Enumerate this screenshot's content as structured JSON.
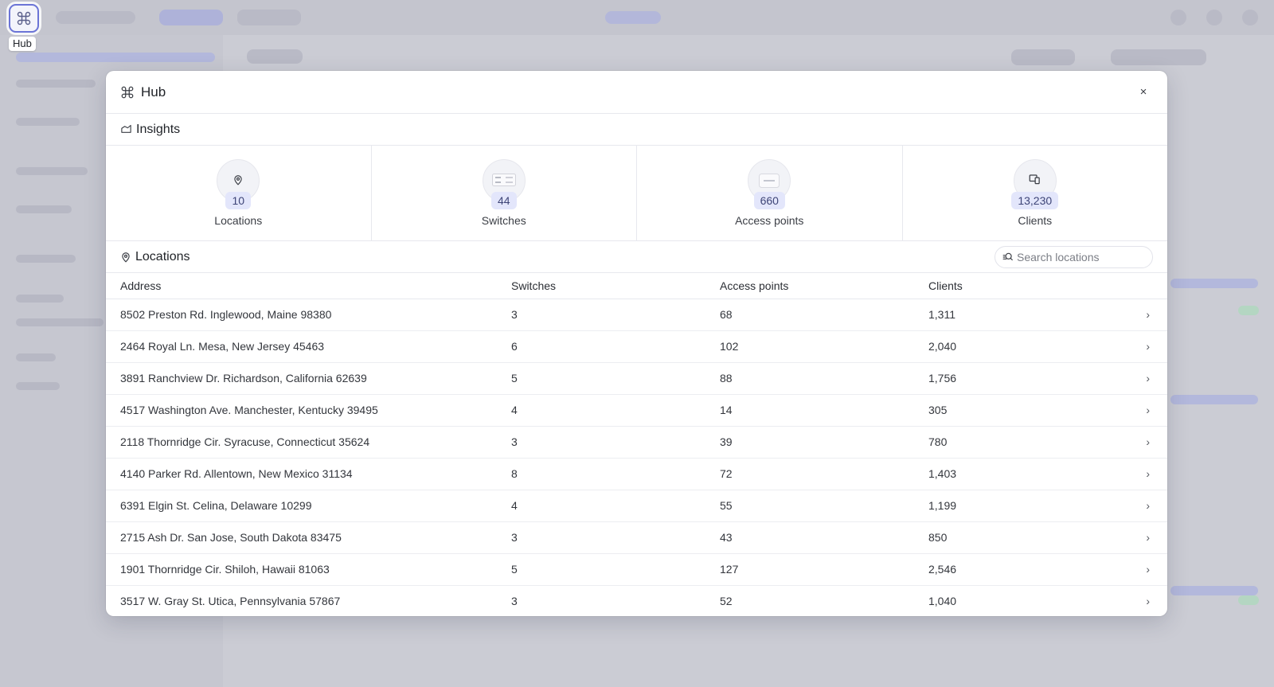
{
  "launcher": {
    "label": "Hub"
  },
  "modal": {
    "title": "Hub",
    "close_glyph": "×",
    "insights": {
      "title": "Insights",
      "cards": [
        {
          "icon": "map-pin-icon",
          "count": "10",
          "label": "Locations"
        },
        {
          "icon": "switch-icon",
          "count": "44",
          "label": "Switches"
        },
        {
          "icon": "access-point-icon",
          "count": "660",
          "label": "Access points"
        },
        {
          "icon": "devices-icon",
          "count": "13,230",
          "label": "Clients"
        }
      ]
    },
    "locations": {
      "title": "Locations",
      "search_placeholder": "Search locations",
      "columns": [
        "Address",
        "Switches",
        "Access points",
        "Clients"
      ],
      "rows": [
        {
          "address": "8502 Preston Rd. Inglewood, Maine 98380",
          "switches": "3",
          "access_points": "68",
          "clients": "1,311"
        },
        {
          "address": "2464 Royal Ln. Mesa, New Jersey 45463",
          "switches": "6",
          "access_points": "102",
          "clients": "2,040"
        },
        {
          "address": "3891 Ranchview Dr. Richardson, California 62639",
          "switches": "5",
          "access_points": "88",
          "clients": "1,756"
        },
        {
          "address": "4517 Washington Ave. Manchester, Kentucky 39495",
          "switches": "4",
          "access_points": "14",
          "clients": "305"
        },
        {
          "address": "2118 Thornridge Cir. Syracuse, Connecticut 35624",
          "switches": "3",
          "access_points": "39",
          "clients": "780"
        },
        {
          "address": "4140 Parker Rd. Allentown, New Mexico 31134",
          "switches": "8",
          "access_points": "72",
          "clients": "1,403"
        },
        {
          "address": "6391 Elgin St. Celina, Delaware 10299",
          "switches": "4",
          "access_points": "55",
          "clients": "1,199"
        },
        {
          "address": "2715 Ash Dr. San Jose, South Dakota 83475",
          "switches": "3",
          "access_points": "43",
          "clients": "850"
        },
        {
          "address": "1901 Thornridge Cir. Shiloh, Hawaii 81063",
          "switches": "5",
          "access_points": "127",
          "clients": "2,546"
        },
        {
          "address": "3517 W. Gray St. Utica, Pennsylvania 57867",
          "switches": "3",
          "access_points": "52",
          "clients": "1,040"
        }
      ]
    }
  },
  "colors": {
    "accent": "#6b74d6",
    "badge_bg": "#e3e6fb",
    "badge_text": "#3e4577"
  }
}
